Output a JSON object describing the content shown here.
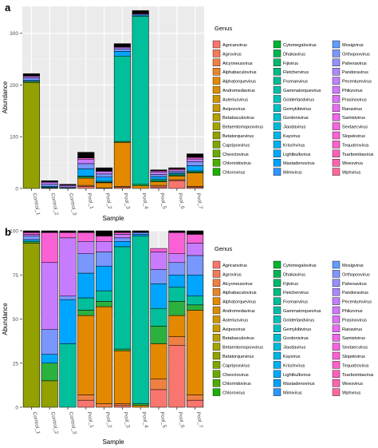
{
  "chart_data": [
    {
      "panel": "a",
      "type": "bar",
      "stacked": true,
      "xlabel": "Sample",
      "ylabel": "Abundance",
      "ylim": [
        0,
        352
      ],
      "yticks": [
        0,
        100,
        200,
        300
      ],
      "grid": true,
      "legend_title": "Genus",
      "legend_position": "right",
      "categories": [
        "Control_1",
        "Control_2",
        "Control_3",
        "Pool_1",
        "Pool_2",
        "Pool_3",
        "Pool_4",
        "Pool_5",
        "Pool_6",
        "Pool_7"
      ],
      "series": [
        {
          "name": "Agricanvirus",
          "color": "#F8766D",
          "values": [
            0,
            0,
            0,
            4,
            0,
            2,
            0,
            3,
            15,
            2
          ]
        },
        {
          "name": "Alcyoneusvirus",
          "color": "#EE8043",
          "values": [
            0,
            0,
            0,
            2,
            1,
            2,
            0,
            3,
            2,
            2
          ]
        },
        {
          "name": "Andromedavirus",
          "color": "#E38900",
          "values": [
            0,
            0,
            0,
            14,
            10,
            85,
            5,
            7,
            7,
            26
          ]
        },
        {
          "name": "Betatorquevirus",
          "color": "#92A000",
          "values": [
            205,
            1,
            0,
            0,
            0,
            0,
            0,
            0,
            0,
            0
          ]
        },
        {
          "name": "Cytomegalovirus",
          "color": "#2BB13D",
          "values": [
            2,
            1,
            0,
            2,
            1,
            2,
            3,
            2,
            2,
            2
          ]
        },
        {
          "name": "Gammatorquevirus",
          "color": "#00BF9A",
          "values": [
            0,
            0,
            1,
            2,
            2,
            165,
            325,
            3,
            2,
            2
          ]
        },
        {
          "name": "Mimivirus",
          "color": "#00A5FF",
          "values": [
            2,
            2,
            0,
            14,
            8,
            9,
            2,
            5,
            2,
            10
          ]
        },
        {
          "name": "Mosigvirus",
          "color": "#7997FF",
          "values": [
            5,
            4,
            2,
            10,
            6,
            5,
            2,
            4,
            3,
            8
          ]
        },
        {
          "name": "Pandoravirus",
          "color": "#C77CFF",
          "values": [
            3,
            4,
            3,
            8,
            5,
            3,
            1,
            5,
            3,
            5
          ]
        },
        {
          "name": "Pahexavirus",
          "color": "#FB61D7",
          "values": [
            1,
            1,
            0,
            3,
            1,
            1,
            1,
            2,
            2,
            3
          ]
        },
        {
          "name": "Other",
          "color": "#000000",
          "values": [
            4,
            2,
            2,
            11,
            6,
            6,
            5,
            2,
            2,
            7
          ]
        }
      ]
    },
    {
      "panel": "b",
      "type": "bar",
      "stacked": true,
      "percent": true,
      "xlabel": "Sample",
      "ylabel": "Abundance",
      "ylim": [
        0,
        100
      ],
      "yticks": [
        0,
        25,
        50,
        75,
        100
      ],
      "grid": true,
      "legend_title": "Genus",
      "legend_position": "right",
      "categories": [
        "Control_1",
        "Control_2",
        "Control_3",
        "Pool_1",
        "Pool_2",
        "Pool_3",
        "Pool_4",
        "Pool_5",
        "Pool_6",
        "Pool_7"
      ],
      "series": [
        {
          "name": "Agricanvirus",
          "color": "#F8766D",
          "values": [
            0,
            0,
            0,
            4,
            0,
            1,
            0,
            10,
            35,
            4
          ]
        },
        {
          "name": "Alcyoneusvirus",
          "color": "#EE8043",
          "values": [
            0,
            0,
            0,
            3,
            2,
            1,
            0,
            6,
            5,
            3
          ]
        },
        {
          "name": "Andromedavirus",
          "color": "#E38900",
          "values": [
            0,
            0,
            0,
            45,
            55,
            30,
            1,
            20,
            12,
            48
          ]
        },
        {
          "name": "Betatorquevirus",
          "color": "#92A000",
          "values": [
            93,
            15,
            0,
            0,
            0,
            0,
            0,
            0,
            0,
            0
          ]
        },
        {
          "name": "Cytomegalovirus",
          "color": "#2BB13D",
          "values": [
            1,
            10,
            0,
            3,
            3,
            1,
            1,
            10,
            8,
            3
          ]
        },
        {
          "name": "Gammatorquevirus",
          "color": "#00BF9A",
          "values": [
            0,
            0,
            36,
            7,
            6,
            58,
            95,
            10,
            8,
            5
          ]
        },
        {
          "name": "Mimivirus",
          "color": "#00A5FF",
          "values": [
            1,
            5,
            25,
            14,
            14,
            3,
            1,
            14,
            7,
            12
          ]
        },
        {
          "name": "Mosigvirus",
          "color": "#7997FF",
          "values": [
            2,
            14,
            2,
            11,
            8,
            2,
            1,
            8,
            7,
            11
          ]
        },
        {
          "name": "Pandoravirus",
          "color": "#C77CFF",
          "values": [
            1,
            38,
            33,
            7,
            6,
            2,
            0,
            10,
            5,
            7
          ]
        },
        {
          "name": "Pahexavirus",
          "color": "#FB61D7",
          "values": [
            1,
            17,
            3,
            5,
            3,
            1,
            0,
            2,
            12,
            5
          ]
        },
        {
          "name": "Other",
          "color": "#000000",
          "values": [
            1,
            1,
            1,
            1,
            3,
            1,
            1,
            0,
            1,
            2
          ]
        }
      ]
    }
  ],
  "legend": {
    "title": "Genus",
    "columns": [
      [
        {
          "name": "Agricanvirus",
          "color": "#F8766D"
        },
        {
          "name": "Agrovirus",
          "color": "#F37B59"
        },
        {
          "name": "Alcyoneusvirus",
          "color": "#EE8043"
        },
        {
          "name": "Alphabaculovirus",
          "color": "#E8852A"
        },
        {
          "name": "Alphatorquevirus",
          "color": "#E38900"
        },
        {
          "name": "Andromedavirus",
          "color": "#D98E00"
        },
        {
          "name": "Asteriusvirus",
          "color": "#CF9400"
        },
        {
          "name": "Avipoxvirus",
          "color": "#C49A00"
        },
        {
          "name": "Betabaculovirus",
          "color": "#B79F00"
        },
        {
          "name": "Betaentomopoxvirus",
          "color": "#A5A300"
        },
        {
          "name": "Betatorquevirus",
          "color": "#92A000"
        },
        {
          "name": "Capripoxvirus",
          "color": "#7FA700"
        },
        {
          "name": "Cheoctovirus",
          "color": "#67AB00"
        },
        {
          "name": "Chloriridovirus",
          "color": "#4BAE00"
        },
        {
          "name": "Chlorovirus",
          "color": "#1AB000"
        }
      ],
      [
        {
          "name": "Cytomegalovirus",
          "color": "#00B42E"
        },
        {
          "name": "Dhakavirus",
          "color": "#00B650"
        },
        {
          "name": "Fijivirus",
          "color": "#00B86C"
        },
        {
          "name": "Fletchervirus",
          "color": "#00BA82"
        },
        {
          "name": "Fromanvirus",
          "color": "#00BB97"
        },
        {
          "name": "Gammatorquevirus",
          "color": "#00BFA8"
        },
        {
          "name": "Golderlandvirus",
          "color": "#00C0B8"
        },
        {
          "name": "Gemykibivirus",
          "color": "#00BFC4"
        },
        {
          "name": "Gordonivirus",
          "color": "#00BDD0"
        },
        {
          "name": "Jiaodavirus",
          "color": "#00BADB"
        },
        {
          "name": "Kayvirus",
          "color": "#00B5E6"
        },
        {
          "name": "Krischvirus",
          "color": "#00B0F0"
        },
        {
          "name": "Lightbulbvirus",
          "color": "#00A9FF"
        },
        {
          "name": "Mastadenovirus",
          "color": "#00A0FF"
        },
        {
          "name": "Mimivirus",
          "color": "#2D96FF"
        }
      ],
      [
        {
          "name": "Mosigvirus",
          "color": "#619CFF"
        },
        {
          "name": "Orthopoxvirus",
          "color": "#7E96FF"
        },
        {
          "name": "Pahexavirus",
          "color": "#978FFF"
        },
        {
          "name": "Pandoravirus",
          "color": "#AC88FF"
        },
        {
          "name": "Pecentumvirus",
          "color": "#BF80FF"
        },
        {
          "name": "Phikzvirus",
          "color": "#CF78FF"
        },
        {
          "name": "Prasinovirus",
          "color": "#DC71FA"
        },
        {
          "name": "Ranavirus",
          "color": "#E76BF3"
        },
        {
          "name": "Samistvirus",
          "color": "#F066EA"
        },
        {
          "name": "Sextaecvirus",
          "color": "#F763E0"
        },
        {
          "name": "Slopekvirus",
          "color": "#FC61D5"
        },
        {
          "name": "Tequatrovirus",
          "color": "#FF61C9"
        },
        {
          "name": "Tsarbombavirus",
          "color": "#FF62BC"
        },
        {
          "name": "Woesvirus",
          "color": "#FF65AE"
        },
        {
          "name": "Wphvirus",
          "color": "#FF699F"
        }
      ]
    ]
  }
}
